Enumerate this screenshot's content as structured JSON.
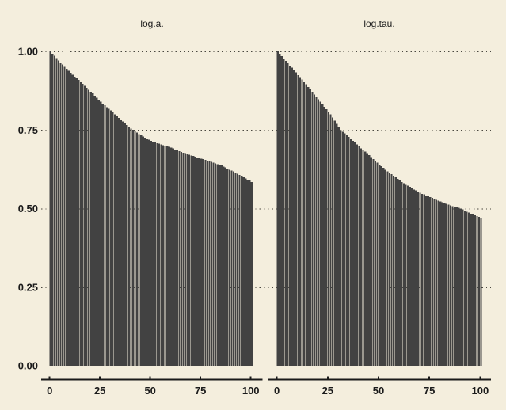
{
  "figure": {
    "background_color": "#f4eedd",
    "bar_color": "#424242",
    "text_color": "#1a1a1a",
    "grid_color": "#4a4840"
  },
  "chart_data": [
    {
      "type": "bar",
      "title": "log.a.",
      "xlabel": "",
      "ylabel": "",
      "xlim": [
        0,
        100
      ],
      "ylim": [
        0.0,
        1.0
      ],
      "x_tick_labels": [
        "0",
        "25",
        "50",
        "75",
        "100"
      ],
      "x_tick_values": [
        0,
        25,
        50,
        75,
        100
      ],
      "y_tick_labels": [
        "0.00",
        "0.25",
        "0.50",
        "0.75",
        "1.00"
      ],
      "y_tick_values": [
        0.0,
        0.25,
        0.5,
        0.75,
        1.0
      ],
      "grid": "horizontal-dotted",
      "legend": "none",
      "x": "index 0..100",
      "values": [
        1.0,
        0.993,
        0.986,
        0.979,
        0.971,
        0.964,
        0.958,
        0.951,
        0.945,
        0.938,
        0.932,
        0.926,
        0.92,
        0.915,
        0.909,
        0.903,
        0.897,
        0.891,
        0.884,
        0.878,
        0.872,
        0.866,
        0.859,
        0.853,
        0.846,
        0.84,
        0.834,
        0.829,
        0.823,
        0.818,
        0.812,
        0.806,
        0.8,
        0.795,
        0.789,
        0.783,
        0.777,
        0.772,
        0.766,
        0.761,
        0.755,
        0.751,
        0.746,
        0.742,
        0.737,
        0.733,
        0.729,
        0.726,
        0.722,
        0.719,
        0.715,
        0.713,
        0.711,
        0.708,
        0.706,
        0.704,
        0.702,
        0.7,
        0.698,
        0.696,
        0.694,
        0.691,
        0.688,
        0.686,
        0.683,
        0.68,
        0.678,
        0.676,
        0.673,
        0.671,
        0.669,
        0.667,
        0.665,
        0.663,
        0.661,
        0.659,
        0.657,
        0.655,
        0.652,
        0.65,
        0.648,
        0.646,
        0.644,
        0.641,
        0.639,
        0.637,
        0.634,
        0.631,
        0.627,
        0.624,
        0.621,
        0.618,
        0.614,
        0.611,
        0.607,
        0.604,
        0.6,
        0.596,
        0.592,
        0.589,
        0.585
      ]
    },
    {
      "type": "bar",
      "title": "log.tau.",
      "xlabel": "",
      "ylabel": "",
      "xlim": [
        0,
        100
      ],
      "ylim": [
        0.0,
        1.0
      ],
      "x_tick_labels": [
        "0",
        "25",
        "50",
        "75",
        "100"
      ],
      "x_tick_values": [
        0,
        25,
        50,
        75,
        100
      ],
      "y_tick_labels": [
        "0.00",
        "0.25",
        "0.50",
        "0.75",
        "1.00"
      ],
      "y_tick_values": [
        0.0,
        0.25,
        0.5,
        0.75,
        1.0
      ],
      "grid": "horizontal-dotted",
      "legend": "none",
      "x": "index 0..100",
      "values": [
        1.0,
        0.992,
        0.985,
        0.977,
        0.97,
        0.962,
        0.955,
        0.948,
        0.94,
        0.933,
        0.925,
        0.918,
        0.91,
        0.903,
        0.895,
        0.887,
        0.879,
        0.871,
        0.863,
        0.855,
        0.848,
        0.84,
        0.832,
        0.824,
        0.816,
        0.808,
        0.8,
        0.79,
        0.78,
        0.77,
        0.76,
        0.75,
        0.744,
        0.739,
        0.733,
        0.728,
        0.722,
        0.716,
        0.71,
        0.704,
        0.698,
        0.692,
        0.687,
        0.681,
        0.676,
        0.67,
        0.664,
        0.658,
        0.652,
        0.646,
        0.64,
        0.635,
        0.63,
        0.624,
        0.619,
        0.614,
        0.609,
        0.604,
        0.599,
        0.595,
        0.59,
        0.585,
        0.58,
        0.576,
        0.573,
        0.569,
        0.565,
        0.561,
        0.558,
        0.554,
        0.55,
        0.547,
        0.545,
        0.542,
        0.539,
        0.536,
        0.534,
        0.531,
        0.528,
        0.525,
        0.523,
        0.52,
        0.518,
        0.515,
        0.513,
        0.51,
        0.508,
        0.506,
        0.504,
        0.502,
        0.5,
        0.497,
        0.494,
        0.49,
        0.487,
        0.484,
        0.481,
        0.478,
        0.476,
        0.473,
        0.47
      ]
    }
  ]
}
